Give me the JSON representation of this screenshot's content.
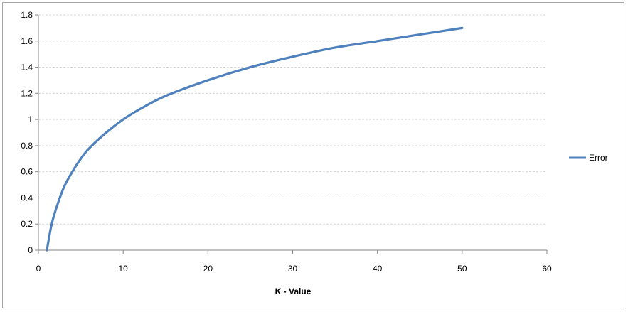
{
  "chart_data": {
    "type": "line",
    "xlabel": "K - Value",
    "ylabel": "",
    "xlim": [
      0,
      60
    ],
    "ylim": [
      0,
      1.8
    ],
    "x_ticks": [
      0,
      10,
      20,
      30,
      40,
      50,
      60
    ],
    "y_ticks": [
      0,
      0.2,
      0.4,
      0.6,
      0.8,
      1,
      1.2,
      1.4,
      1.6,
      1.8
    ],
    "grid": "horizontal",
    "legend": "right",
    "series": [
      {
        "name": "Error",
        "color": "#4f81bd",
        "x": [
          1,
          1.5,
          2,
          3,
          4,
          5,
          6,
          8,
          10,
          12,
          15,
          20,
          25,
          30,
          35,
          40,
          45,
          50
        ],
        "y": [
          0,
          0.18,
          0.3,
          0.48,
          0.6,
          0.7,
          0.78,
          0.9,
          1.0,
          1.08,
          1.18,
          1.3,
          1.4,
          1.48,
          1.55,
          1.6,
          1.65,
          1.7
        ]
      }
    ]
  }
}
